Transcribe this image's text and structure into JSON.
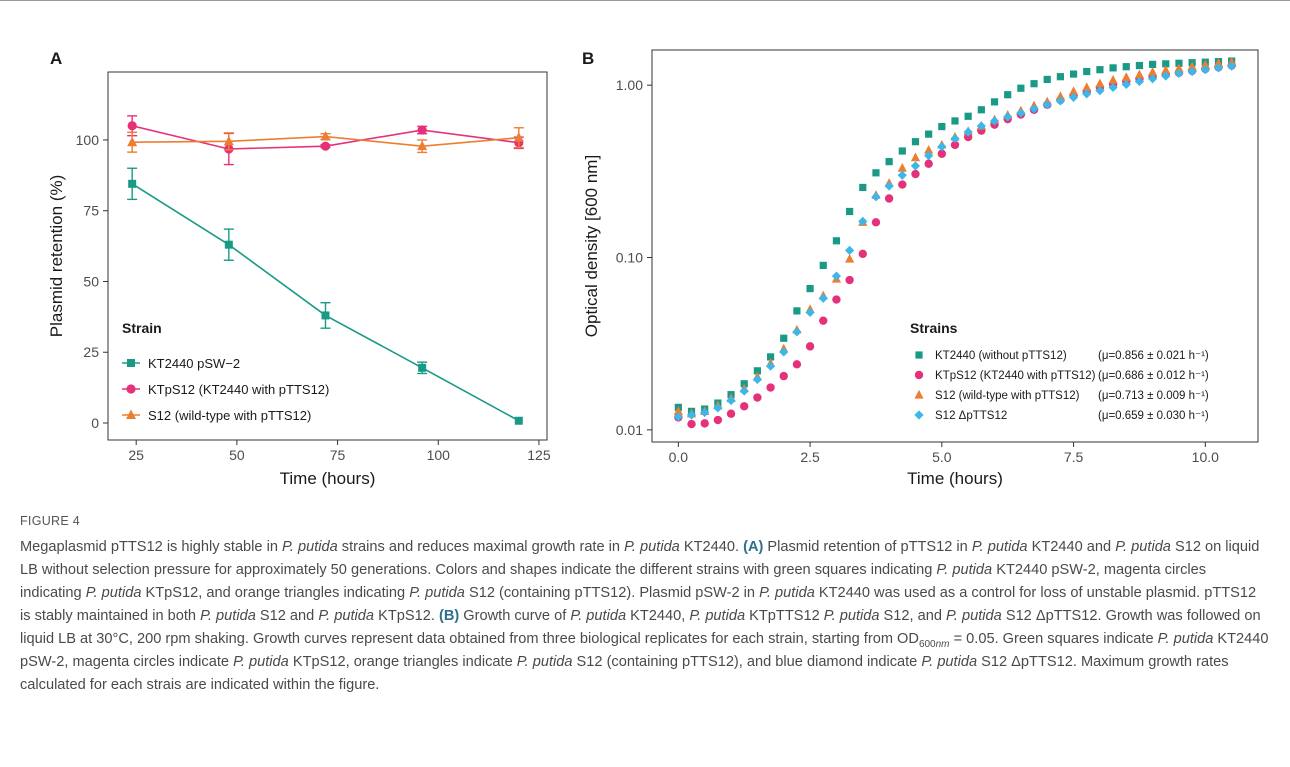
{
  "figure_label": "FIGURE 4",
  "caption_html": "Megaplasmid pTTS12 is highly stable in <i>P. putida</i> strains and reduces maximal growth rate in <i>P. putida</i> KT2440. <b>(A)</b> Plasmid retention of pTTS12 in <i>P. putida</i> KT2440 and <i>P. putida</i> S12 on liquid LB without selection pressure for approximately 50 generations. Colors and shapes indicate the different strains with green squares indicating <i>P. putida</i> KT2440 pSW-2, magenta circles indicating <i>P. putida</i> KTpS12, and orange triangles indicating <i>P. putida</i> S12 (containing pTTS12). Plasmid pSW-2 in <i>P. putida</i> KT2440 was used as a control for loss of unstable plasmid. pTTS12 is stably maintained in both <i>P. putida</i> S12 and <i>P. putida</i> KTpS12. <b>(B)</b> Growth curve of <i>P. putida</i> KT2440, <i>P. putida</i> KTpTTS12 <i>P. putida</i> S12, and <i>P. putida</i> S12 ΔpTTS12. Growth was followed on liquid LB at 30°C, 200 rpm shaking. Growth curves represent data obtained from three biological replicates for each strain, starting from OD<sub>600<i>nm</i></sub> = 0.05. Green squares indicate <i>P. putida</i> KT2440 pSW-2, magenta circles indicate <i>P. putida</i> KTpS12, orange triangles indicate <i>P. putida</i> S12 (containing pTTS12), and blue diamond indicate <i>P. putida</i> S12 ΔpTTS12. Maximum growth rates calculated for each strais are indicated within the figure.",
  "chart_data": [
    {
      "panel": "A",
      "type": "line",
      "xlabel": "Time (hours)",
      "ylabel": "Plasmid retention (%)",
      "xlim": [
        18,
        127
      ],
      "ylim": [
        -6,
        124
      ],
      "xticks": [
        25,
        50,
        75,
        100,
        125
      ],
      "yticks": [
        0,
        25,
        50,
        75,
        100
      ],
      "legend_title": "Strain",
      "legend_position": "bottom-left",
      "grid": false,
      "series": [
        {
          "name": "KT2440 pSW−2",
          "color": "#1a9a86",
          "marker": "square",
          "x": [
            24,
            48,
            72,
            96,
            120
          ],
          "y": [
            84.5,
            63,
            38,
            19.5,
            0.8
          ],
          "err": [
            5.5,
            5.5,
            4.5,
            2,
            0
          ]
        },
        {
          "name": "KTpS12 (KT2440 with pTTS12)",
          "color": "#e5317a",
          "marker": "circle",
          "x": [
            24,
            48,
            72,
            96,
            120
          ],
          "y": [
            105,
            96.8,
            97.8,
            103.5,
            99
          ],
          "err": [
            3.5,
            5.5,
            0.5,
            1.3,
            2
          ]
        },
        {
          "name": "S12 (wild-type with pTTS12)",
          "color": "#ed7d31",
          "marker": "triangle",
          "x": [
            24,
            48,
            72,
            96,
            120
          ],
          "y": [
            99.2,
            99.5,
            101.2,
            97.8,
            100.8
          ],
          "err": [
            3.5,
            3,
            1,
            2.2,
            3.5
          ]
        }
      ]
    },
    {
      "panel": "B",
      "type": "scatter",
      "xlabel": "Time (hours)",
      "ylabel": "Optical density [600 nm]",
      "y_scale": "log",
      "xlim": [
        -0.5,
        11
      ],
      "ylim": [
        0.0085,
        1.6
      ],
      "xticks": [
        0.0,
        2.5,
        5.0,
        7.5,
        10.0
      ],
      "xtick_labels": [
        "0.0",
        "2.5",
        "5.0",
        "7.5",
        "10.0"
      ],
      "yticks": [
        0.01,
        0.1,
        1.0
      ],
      "ytick_labels": [
        "0.01",
        "0.10",
        "1.00"
      ],
      "legend_title": "Strains",
      "legend_position": "bottom-right",
      "grid": false,
      "x": [
        0,
        0.25,
        0.5,
        0.75,
        1,
        1.25,
        1.5,
        1.75,
        2,
        2.25,
        2.5,
        2.75,
        3,
        3.25,
        3.5,
        3.75,
        4,
        4.25,
        4.5,
        4.75,
        5,
        5.25,
        5.5,
        5.75,
        6,
        6.25,
        6.5,
        6.75,
        7,
        7.25,
        7.5,
        7.75,
        8,
        8.25,
        8.5,
        8.75,
        9,
        9.25,
        9.5,
        9.75,
        10,
        10.25,
        10.5
      ],
      "series": [
        {
          "name": "KT2440 (without pTTS12)",
          "annotation": "(μ=0.856 ± 0.021 h⁻¹)",
          "color": "#1a9a86",
          "marker": "square",
          "y": [
            0.0135,
            0.0128,
            0.0132,
            0.0143,
            0.016,
            0.0185,
            0.022,
            0.0265,
            0.034,
            0.049,
            0.066,
            0.09,
            0.125,
            0.185,
            0.255,
            0.31,
            0.36,
            0.415,
            0.47,
            0.52,
            0.575,
            0.62,
            0.66,
            0.72,
            0.8,
            0.88,
            0.96,
            1.02,
            1.08,
            1.12,
            1.16,
            1.2,
            1.23,
            1.26,
            1.28,
            1.3,
            1.32,
            1.33,
            1.34,
            1.35,
            1.36,
            1.37,
            1.38
          ]
        },
        {
          "name": "KTpS12 (KT2440 with pTTS12)",
          "annotation": "(μ=0.686 ± 0.012 h⁻¹)",
          "color": "#e5317a",
          "marker": "circle",
          "y": [
            0.0118,
            0.0108,
            0.0109,
            0.0114,
            0.0124,
            0.0137,
            0.0154,
            0.0176,
            0.0205,
            0.024,
            0.0305,
            0.043,
            0.057,
            0.074,
            0.105,
            0.16,
            0.22,
            0.265,
            0.305,
            0.35,
            0.4,
            0.45,
            0.5,
            0.545,
            0.59,
            0.635,
            0.675,
            0.72,
            0.77,
            0.82,
            0.87,
            0.92,
            0.97,
            1.01,
            1.05,
            1.09,
            1.12,
            1.15,
            1.18,
            1.21,
            1.24,
            1.27,
            1.3
          ]
        },
        {
          "name": "S12 (wild-type with pTTS12)",
          "annotation": "(μ=0.713 ± 0.009 h⁻¹)",
          "color": "#ed7d31",
          "marker": "triangle",
          "y": [
            0.0128,
            0.0124,
            0.0128,
            0.0138,
            0.0152,
            0.0173,
            0.0203,
            0.0243,
            0.0295,
            0.038,
            0.05,
            0.06,
            0.075,
            0.098,
            0.16,
            0.23,
            0.27,
            0.33,
            0.38,
            0.42,
            0.45,
            0.5,
            0.54,
            0.58,
            0.63,
            0.67,
            0.71,
            0.76,
            0.8,
            0.86,
            0.92,
            0.97,
            1.02,
            1.07,
            1.11,
            1.15,
            1.19,
            1.22,
            1.25,
            1.28,
            1.31,
            1.34,
            1.36
          ]
        },
        {
          "name": "S12 ΔpTTS12",
          "annotation": "(μ=0.659 ± 0.030 h⁻¹)",
          "color": "#3db7e8",
          "marker": "diamond",
          "y": [
            0.0119,
            0.0122,
            0.0126,
            0.0134,
            0.0148,
            0.0168,
            0.0196,
            0.0234,
            0.0283,
            0.037,
            0.048,
            0.058,
            0.078,
            0.11,
            0.162,
            0.225,
            0.26,
            0.3,
            0.34,
            0.39,
            0.44,
            0.49,
            0.535,
            0.58,
            0.62,
            0.655,
            0.69,
            0.73,
            0.77,
            0.81,
            0.85,
            0.89,
            0.93,
            0.97,
            1.01,
            1.05,
            1.09,
            1.13,
            1.17,
            1.2,
            1.23,
            1.26,
            1.29
          ]
        }
      ]
    }
  ]
}
